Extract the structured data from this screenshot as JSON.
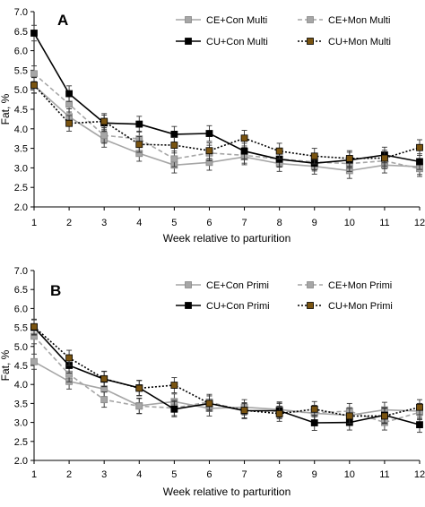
{
  "chart_data": [
    {
      "type": "line",
      "panel_label": "A",
      "xlabel": "Week relative to parturition",
      "ylabel": "Fat, %",
      "x": [
        1,
        2,
        3,
        4,
        5,
        6,
        7,
        8,
        9,
        10,
        11,
        12
      ],
      "xlim": [
        1,
        12
      ],
      "ylim": [
        2.0,
        7.0
      ],
      "yticks": [
        "2.0",
        "2.5",
        "3.0",
        "3.5",
        "4.0",
        "4.5",
        "5.0",
        "5.5",
        "6.0",
        "6.5",
        "7.0"
      ],
      "xticks": [
        "1",
        "2",
        "3",
        "4",
        "5",
        "6",
        "7",
        "8",
        "9",
        "10",
        "11",
        "12"
      ],
      "grid": false,
      "legend_position": "top-right",
      "series": [
        {
          "name": "CE+Con Multi",
          "color": "#a6a6a6",
          "marker": "#a6a6a6",
          "dash": "solid",
          "values": [
            5.11,
            4.31,
            3.73,
            3.37,
            3.07,
            3.14,
            3.28,
            3.11,
            3.04,
            2.93,
            3.07,
            3.03
          ],
          "errors": [
            0.2,
            0.2,
            0.2,
            0.2,
            0.2,
            0.2,
            0.2,
            0.2,
            0.2,
            0.2,
            0.2,
            0.2
          ]
        },
        {
          "name": "CE+Mon Multi",
          "color": "#a6a6a6",
          "marker": "#a6a6a6",
          "dash": "dashed",
          "values": [
            5.41,
            4.63,
            3.83,
            3.74,
            3.23,
            3.38,
            3.32,
            3.23,
            3.15,
            3.11,
            3.18,
            2.98
          ],
          "errors": [
            0.2,
            0.2,
            0.2,
            0.2,
            0.2,
            0.2,
            0.2,
            0.2,
            0.2,
            0.2,
            0.2,
            0.2
          ]
        },
        {
          "name": "CU+Con Multi",
          "color": "#000000",
          "marker": "#000000",
          "dash": "solid",
          "values": [
            6.45,
            4.9,
            4.15,
            4.12,
            3.86,
            3.88,
            3.43,
            3.22,
            3.12,
            3.2,
            3.33,
            3.16
          ],
          "errors": [
            0.2,
            0.2,
            0.2,
            0.2,
            0.2,
            0.2,
            0.2,
            0.2,
            0.2,
            0.2,
            0.2,
            0.2
          ]
        },
        {
          "name": "CU+Mon Multi",
          "color": "#000000",
          "marker": "#7a5410",
          "dash": "dotted",
          "values": [
            5.12,
            4.14,
            4.19,
            3.6,
            3.58,
            3.44,
            3.76,
            3.43,
            3.3,
            3.24,
            3.25,
            3.52
          ],
          "errors": [
            0.2,
            0.2,
            0.2,
            0.2,
            0.2,
            0.2,
            0.2,
            0.2,
            0.2,
            0.2,
            0.2,
            0.2
          ]
        }
      ]
    },
    {
      "type": "line",
      "panel_label": "B",
      "xlabel": "Week relative to parturition",
      "ylabel": "Fat, %",
      "x": [
        1,
        2,
        3,
        4,
        5,
        6,
        7,
        8,
        9,
        10,
        11,
        12
      ],
      "xlim": [
        1,
        12
      ],
      "ylim": [
        2.0,
        7.0
      ],
      "yticks": [
        "2.0",
        "2.5",
        "3.0",
        "3.5",
        "4.0",
        "4.5",
        "5.0",
        "5.5",
        "6.0",
        "6.5",
        "7.0"
      ],
      "xticks": [
        "1",
        "2",
        "3",
        "4",
        "5",
        "6",
        "7",
        "8",
        "9",
        "10",
        "11",
        "12"
      ],
      "grid": false,
      "legend_position": "top-right",
      "series": [
        {
          "name": "CE+Con Primi",
          "color": "#a6a6a6",
          "marker": "#a6a6a6",
          "dash": "solid",
          "values": [
            4.6,
            4.08,
            3.88,
            3.44,
            3.55,
            3.37,
            3.4,
            3.34,
            3.24,
            3.19,
            3.33,
            3.3
          ],
          "errors": [
            0.2,
            0.2,
            0.2,
            0.2,
            0.2,
            0.2,
            0.2,
            0.2,
            0.2,
            0.2,
            0.2,
            0.2
          ]
        },
        {
          "name": "CE+Mon Primi",
          "color": "#a6a6a6",
          "marker": "#a6a6a6",
          "dash": "dashed",
          "values": [
            5.27,
            4.27,
            3.6,
            3.43,
            3.38,
            3.54,
            3.3,
            3.3,
            3.25,
            3.3,
            3.0,
            3.27
          ],
          "errors": [
            0.2,
            0.2,
            0.2,
            0.2,
            0.2,
            0.2,
            0.2,
            0.2,
            0.2,
            0.2,
            0.2,
            0.2
          ]
        },
        {
          "name": "CU+Con Primi",
          "color": "#000000",
          "marker": "#000000",
          "dash": "solid",
          "values": [
            5.5,
            4.5,
            4.14,
            3.91,
            3.35,
            3.5,
            3.31,
            3.31,
            2.99,
            3.0,
            3.19,
            2.94
          ],
          "errors": [
            0.2,
            0.2,
            0.2,
            0.2,
            0.2,
            0.2,
            0.2,
            0.2,
            0.2,
            0.2,
            0.2,
            0.2
          ]
        },
        {
          "name": "CU+Mon Primi",
          "color": "#000000",
          "marker": "#7a5410",
          "dash": "dotted",
          "values": [
            5.52,
            4.7,
            4.15,
            3.9,
            3.98,
            3.5,
            3.32,
            3.23,
            3.35,
            3.17,
            3.17,
            3.4
          ],
          "errors": [
            0.2,
            0.2,
            0.2,
            0.2,
            0.2,
            0.2,
            0.2,
            0.2,
            0.2,
            0.2,
            0.2,
            0.2
          ]
        }
      ]
    }
  ]
}
